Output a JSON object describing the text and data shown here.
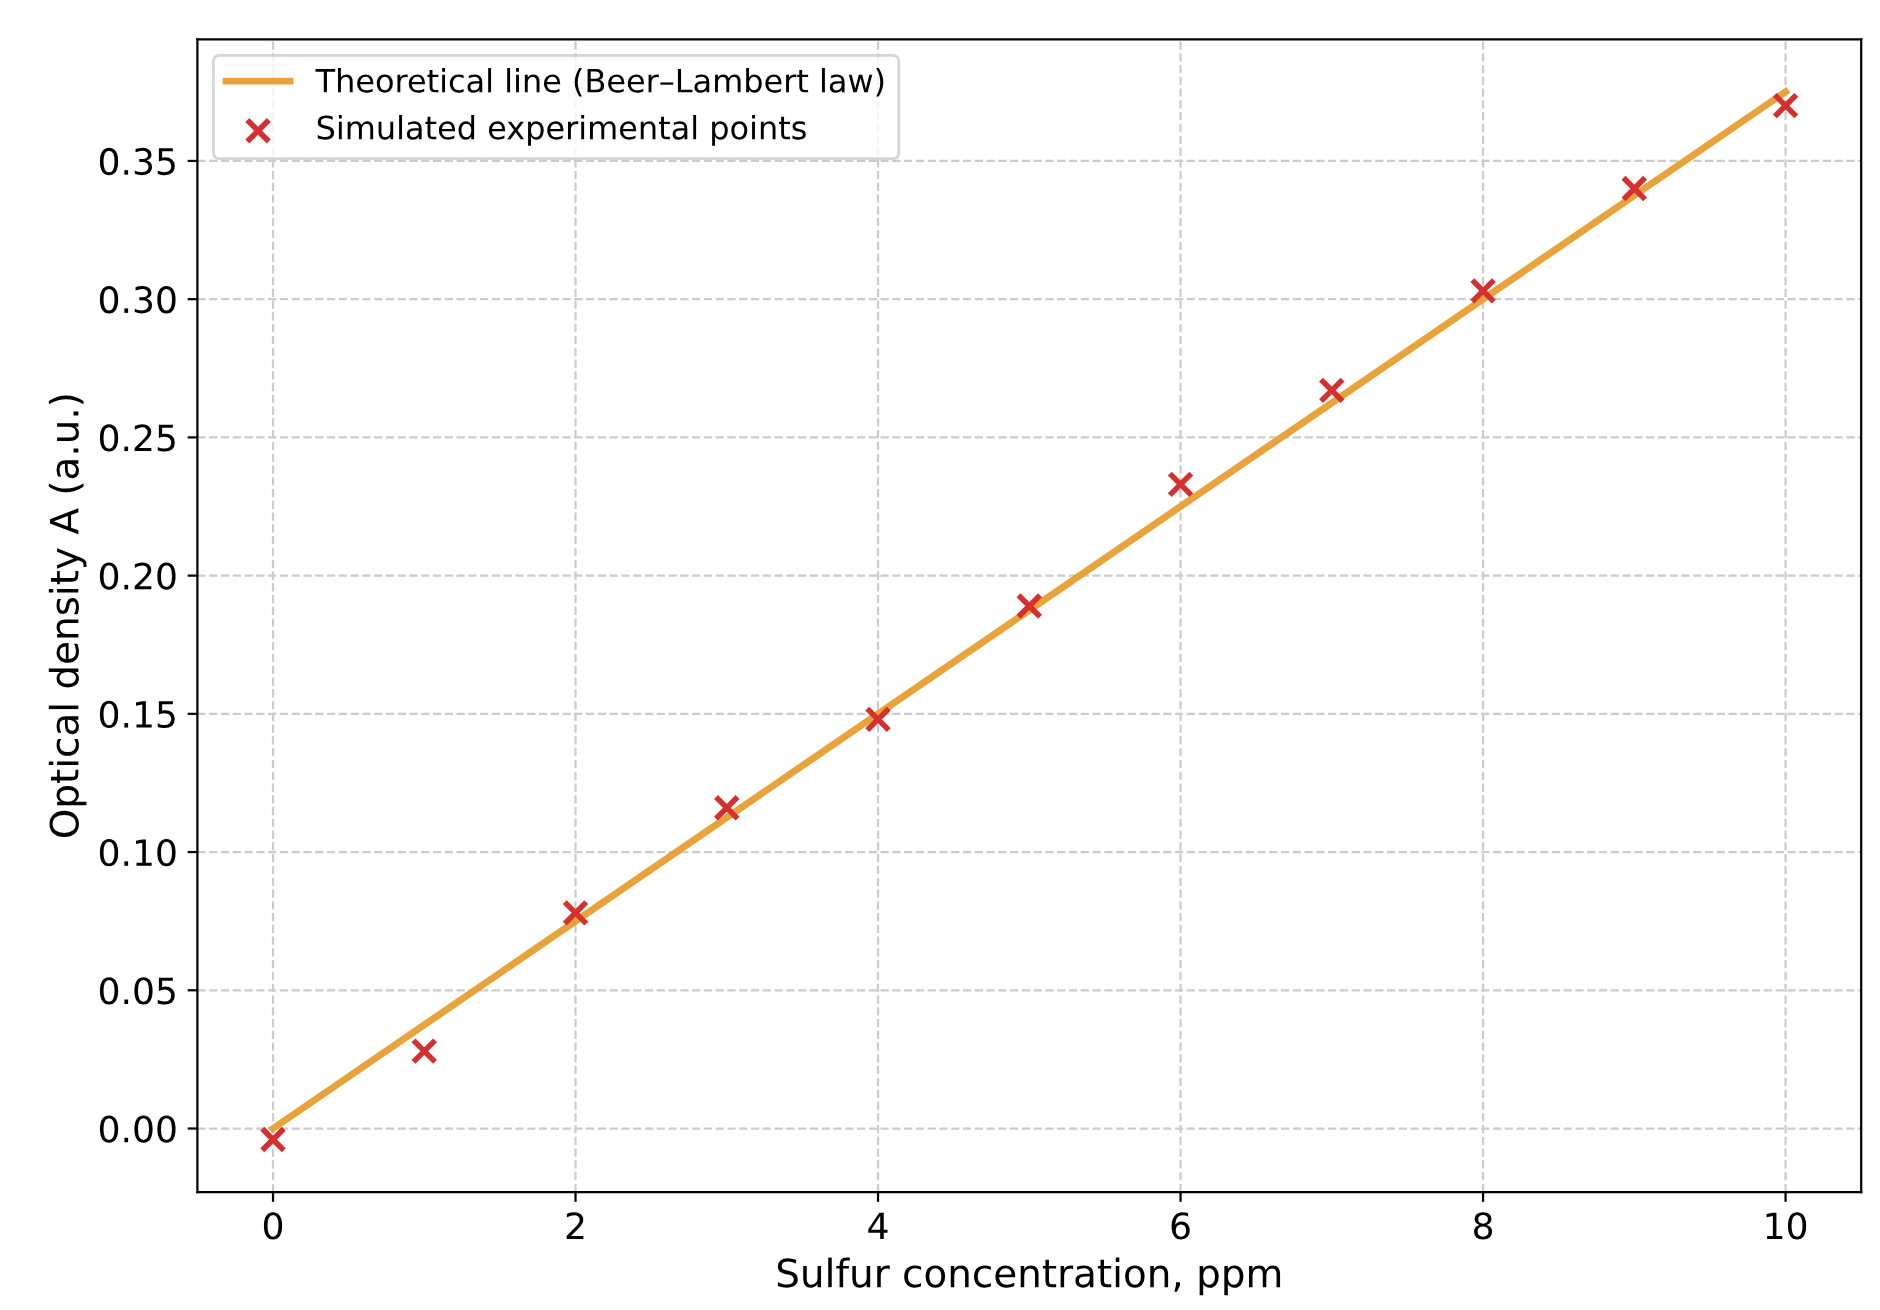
{
  "chart_data": {
    "type": "scatter",
    "xlabel": "Sulfur concentration, ppm",
    "ylabel": "Optical density A (a.u.)",
    "series": [
      {
        "name": "Theoretical line (Beer–Lambert law)",
        "type": "line",
        "color": "#e8a33a",
        "x": [
          0,
          10
        ],
        "values": [
          0,
          0.375
        ],
        "marker": "none"
      },
      {
        "name": "Simulated experimental points",
        "color": "#d62f2f",
        "x": [
          0,
          1,
          2,
          3,
          4,
          5,
          6,
          7,
          8,
          9,
          10
        ],
        "values": [
          -0.004,
          0.028,
          0.078,
          0.116,
          0.148,
          0.189,
          0.233,
          0.267,
          0.303,
          0.34,
          0.37
        ],
        "marker": "cross"
      }
    ],
    "xlim": [
      -0.5,
      10.5
    ],
    "xticks": [
      0,
      2,
      4,
      6,
      8,
      10
    ],
    "ylim": [
      -0.023,
      0.394
    ],
    "yticks": [
      {
        "value": 0,
        "label": "0.00"
      },
      0.05,
      {
        "value": 0.1,
        "label": "0.10"
      },
      0.15,
      {
        "value": 0.2,
        "label": "0.20"
      },
      0.25,
      {
        "value": 0.3,
        "label": "0.30"
      },
      0.35
    ],
    "grid": true,
    "legend": "top left",
    "line_style": "solid"
  }
}
